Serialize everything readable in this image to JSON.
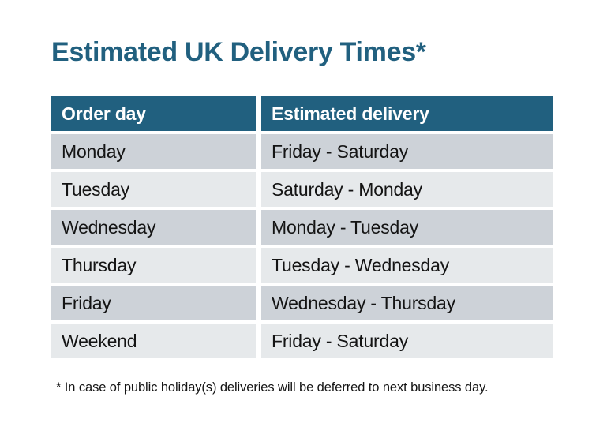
{
  "page": {
    "title": "Estimated UK Delivery Times*",
    "footnote": "* In case of public holiday(s) deliveries will be deferred to next business day."
  },
  "table": {
    "headers": [
      "Order day",
      "Estimated delivery"
    ],
    "rows": [
      {
        "order_day": "Monday",
        "estimated_delivery": "Friday - Saturday"
      },
      {
        "order_day": "Tuesday",
        "estimated_delivery": "Saturday - Monday"
      },
      {
        "order_day": "Wednesday",
        "estimated_delivery": "Monday - Tuesday"
      },
      {
        "order_day": "Thursday",
        "estimated_delivery": "Tuesday - Wednesday"
      },
      {
        "order_day": "Friday",
        "estimated_delivery": "Wednesday - Thursday"
      },
      {
        "order_day": "Weekend",
        "estimated_delivery": "Friday - Saturday"
      }
    ]
  },
  "chart_data": {
    "type": "table",
    "title": "Estimated UK Delivery Times*",
    "columns": [
      "Order day",
      "Estimated delivery"
    ],
    "rows": [
      [
        "Monday",
        "Friday - Saturday"
      ],
      [
        "Tuesday",
        "Saturday - Monday"
      ],
      [
        "Wednesday",
        "Monday - Tuesday"
      ],
      [
        "Thursday",
        "Tuesday - Wednesday"
      ],
      [
        "Friday",
        "Wednesday - Thursday"
      ],
      [
        "Weekend",
        "Friday - Saturday"
      ]
    ],
    "footnote": "* In case of public holiday(s) deliveries will be deferred to next business day.",
    "layout_hints": {
      "header_style": "solid-fill",
      "row_striping": "alternating",
      "cell_gaps": true
    }
  },
  "colors": {
    "accent": "#21607F",
    "header_bg": "#21607F",
    "header_text": "#FFFFFF",
    "row_dark": "#CDD2D8",
    "row_light": "#E6E9EB",
    "body_text": "#141414",
    "background": "#FFFFFF"
  }
}
